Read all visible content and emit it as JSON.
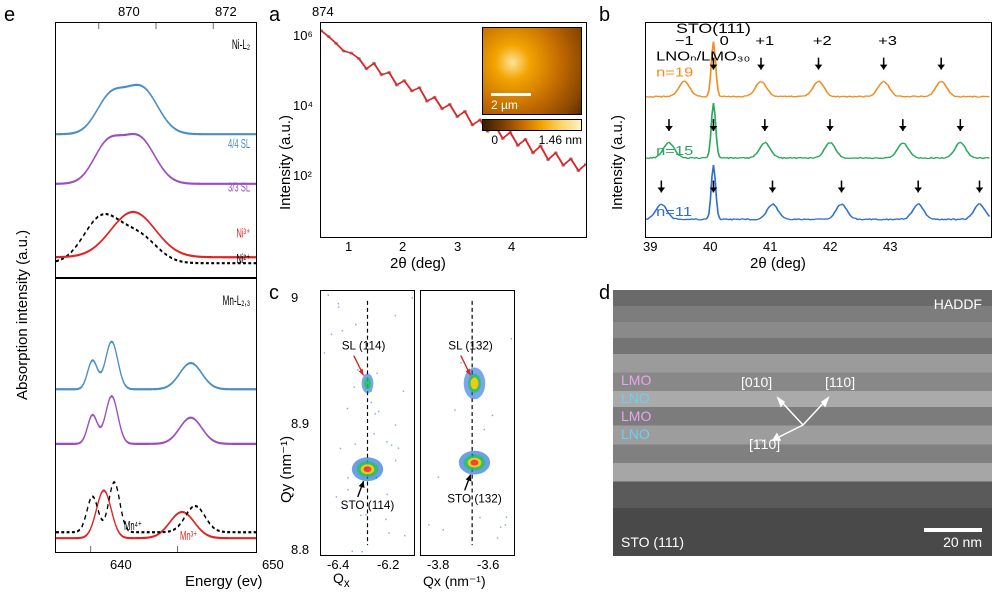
{
  "panelA": {
    "label": "a",
    "type": "line+scatter",
    "ylabel": "Intensity (a.u.)",
    "xlabel": "2θ (deg)",
    "xlim": [
      0.5,
      4
    ],
    "ylim": [
      1,
      2000000
    ],
    "yscale": "log",
    "xticks": [
      1,
      2,
      3,
      4
    ],
    "yticks": [
      100.0,
      10000.0,
      1000000.0
    ],
    "ytick_labels": [
      "10²",
      "10⁴",
      "10⁶"
    ],
    "fit_color": "#d92626",
    "data_color": "#9e9e9e",
    "fit_linewidth": 1.5,
    "x": [
      0.5,
      0.6,
      0.7,
      0.8,
      0.9,
      1.0,
      1.1,
      1.2,
      1.3,
      1.4,
      1.5,
      1.6,
      1.7,
      1.8,
      1.9,
      2.0,
      2.1,
      2.2,
      2.3,
      2.4,
      2.5,
      2.6,
      2.7,
      2.8,
      2.9,
      3.0,
      3.1,
      3.2,
      3.3,
      3.4,
      3.5,
      3.6,
      3.7,
      3.8,
      3.9,
      4.0
    ],
    "y": [
      1200000.0,
      800000.0,
      500000.0,
      300000.0,
      260000.0,
      180000.0,
      90000.0,
      130000.0,
      60000.0,
      70000.0,
      30000.0,
      40000.0,
      20000.0,
      25000.0,
      10000.0,
      13000.0,
      6000.0,
      8000.0,
      3500.0,
      5000.0,
      2000.0,
      2800.0,
      1300.0,
      1900.0,
      800,
      1200.0,
      500,
      750,
      300,
      480,
      190,
      300,
      130,
      200,
      90,
      140
    ],
    "inset": {
      "scalebar_label": "2 µm",
      "colorbar_min": 0,
      "colorbar_max_label": "1.46 nm",
      "gradient": [
        "#3a1d00",
        "#7a3d00",
        "#c46b00",
        "#f2a500",
        "#ffd56b",
        "#fff2c2"
      ]
    }
  },
  "panelB": {
    "label": "b",
    "type": "stacked-line",
    "ylabel": "Intensity (a.u.)",
    "xlabel": "2θ (deg)",
    "xlim": [
      39,
      43.5
    ],
    "xticks": [
      39,
      40,
      41,
      42,
      43
    ],
    "top_label_1": "STO(111)",
    "top_label_2": "LNOₙ/LMO₃₀",
    "satellite_labels": [
      "−1",
      "0",
      "+1",
      "+2",
      "+3"
    ],
    "arrow_color": "#000000",
    "curves": [
      {
        "name": "n=19",
        "color": "#f28c1e",
        "offset": 2,
        "n_label": "n=19",
        "peaks": [
          39.5,
          39.88,
          40.5,
          41.25,
          42.1,
          42.85
        ]
      },
      {
        "name": "n=15",
        "color": "#2aa85f",
        "offset": 1,
        "n_label": "n=15",
        "peaks": [
          39.3,
          39.88,
          40.55,
          41.4,
          42.35,
          43.1
        ]
      },
      {
        "name": "n=11",
        "color": "#2d6fd1",
        "offset": 0,
        "n_label": "n=11",
        "peaks": [
          39.2,
          39.88,
          40.65,
          41.55,
          42.55,
          43.35
        ]
      }
    ],
    "main_peak_x": 39.88,
    "background_color": "#ffffff",
    "tick_fontsize": 13,
    "label_fontsize": 15
  },
  "panelC": {
    "label": "c",
    "type": "rsm",
    "ylabel": "Qy (nm⁻¹)",
    "xlabel": "Qx (nm⁻¹)",
    "ylim": [
      8.8,
      9.0
    ],
    "yticks": [
      8.8,
      8.9,
      9.0
    ],
    "left": {
      "xlim": [
        -6.5,
        -6.1
      ],
      "xticks": [
        -6.4,
        -6.2
      ],
      "sl_label": "SL (114)",
      "sto_label": "STO (114)",
      "sl_pos": [
        -6.3,
        8.93
      ],
      "sto_pos": [
        -6.3,
        8.865
      ],
      "sl_arrow_color": "#d92626",
      "sto_arrow_color": "#000000"
    },
    "right": {
      "xlim": [
        -3.9,
        -3.5
      ],
      "xticks": [
        -3.8,
        -3.6
      ],
      "sl_label": "SL (132)",
      "sto_label": "STO (132)",
      "sl_pos": [
        -3.67,
        8.93
      ],
      "sto_pos": [
        -3.67,
        8.87
      ],
      "sl_arrow_color": "#d92626",
      "sto_arrow_color": "#000000"
    },
    "colormap": [
      "#ffffff",
      "#0033cc",
      "#00a2e8",
      "#22c55e",
      "#f6c90e",
      "#ef4444",
      "#9b1c1c"
    ]
  },
  "panelD": {
    "label": "d",
    "type": "micrograph",
    "title": "HADDF",
    "layers": [
      {
        "label": "LMO",
        "color": "#d37fd3"
      },
      {
        "label": "LNO",
        "color": "#4fb3e6"
      },
      {
        "label": "LMO",
        "color": "#d37fd3"
      },
      {
        "label": "LNO",
        "color": "#4fb3e6"
      }
    ],
    "substrate_label": "STO (111)",
    "directions": {
      "up_left": "[010]",
      "up_right": "[110]",
      "down": "[1̄10]"
    },
    "scalebar_label": "20 nm"
  },
  "panelE": {
    "label": "e",
    "type": "xas-stacked",
    "ylabel": "Absorption intensity (a.u.)",
    "xlabel": "Energy (ev)",
    "top": {
      "edge_label": "Ni-L₂",
      "x_top_ticks": [
        870,
        872,
        874
      ],
      "xlim": [
        868.5,
        875.5
      ],
      "curves": [
        {
          "name": "4/4 SL",
          "color": "#4b8fc6",
          "linewidth": 2.2,
          "dash": "none"
        },
        {
          "name": "3/3 SL",
          "color": "#9a4fbf",
          "linewidth": 2.2,
          "dash": "none"
        },
        {
          "name": "Ni³⁺",
          "color": "#e02424",
          "linewidth": 2.2,
          "dash": "none"
        },
        {
          "name": "Ni²⁺",
          "color": "#000000",
          "linewidth": 2.2,
          "dash": "5,4"
        }
      ]
    },
    "bottom": {
      "edge_label": "Mn-L₂,₃",
      "xlim": [
        636,
        659
      ],
      "xticks": [
        640,
        650
      ],
      "curves": [
        {
          "name": "4/4 SL",
          "color": "#4b8fc6",
          "linewidth": 2.2,
          "dash": "none"
        },
        {
          "name": "3/3 SL",
          "color": "#9a4fbf",
          "linewidth": 2.2,
          "dash": "none"
        },
        {
          "name": "Mn⁴⁺",
          "color": "#000000",
          "linewidth": 2.2,
          "dash": "5,4"
        },
        {
          "name": "Mn³⁺",
          "color": "#e02424",
          "linewidth": 2.2,
          "dash": "none"
        }
      ]
    }
  }
}
